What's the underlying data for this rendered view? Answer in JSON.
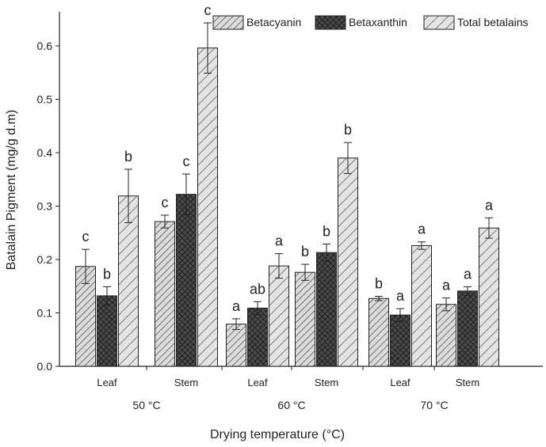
{
  "chart_data": {
    "type": "bar",
    "xlabel": "Drying temperature (°C)",
    "ylabel": "Batalain Pigment (mg/g d.m)",
    "ylim": [
      0.0,
      0.65
    ],
    "yticks": [
      "0.0",
      "0.1",
      "0.2",
      "0.3",
      "0.4",
      "0.5",
      "0.6"
    ],
    "temperature_groups": [
      "50 °C",
      "60 °C",
      "70 °C"
    ],
    "categories": [
      "Leaf",
      "Stem",
      "Leaf",
      "Stem",
      "Leaf",
      "Stem"
    ],
    "series": [
      {
        "name": "Betacyanin",
        "pattern": "hatch-light",
        "values": [
          0.187,
          0.271,
          0.079,
          0.176,
          0.127,
          0.116
        ],
        "errors": [
          0.032,
          0.012,
          0.01,
          0.015,
          0.004,
          0.012
        ],
        "letters": [
          "c",
          "c",
          "a",
          "b",
          "b",
          "a"
        ]
      },
      {
        "name": "Betaxanthin",
        "pattern": "crosshatch-dark",
        "values": [
          0.132,
          0.322,
          0.109,
          0.213,
          0.096,
          0.141
        ],
        "errors": [
          0.017,
          0.038,
          0.012,
          0.016,
          0.012,
          0.008
        ],
        "letters": [
          "b",
          "c",
          "ab",
          "b",
          "a",
          "a"
        ]
      },
      {
        "name": "Total betalains",
        "pattern": "hatch-wide",
        "values": [
          0.319,
          0.596,
          0.188,
          0.39,
          0.226,
          0.259
        ],
        "errors": [
          0.05,
          0.047,
          0.023,
          0.029,
          0.007,
          0.019
        ],
        "letters": [
          "b",
          "c",
          "a",
          "b",
          "a",
          "a"
        ]
      }
    ],
    "legend_position": "top-right",
    "grid": false
  }
}
